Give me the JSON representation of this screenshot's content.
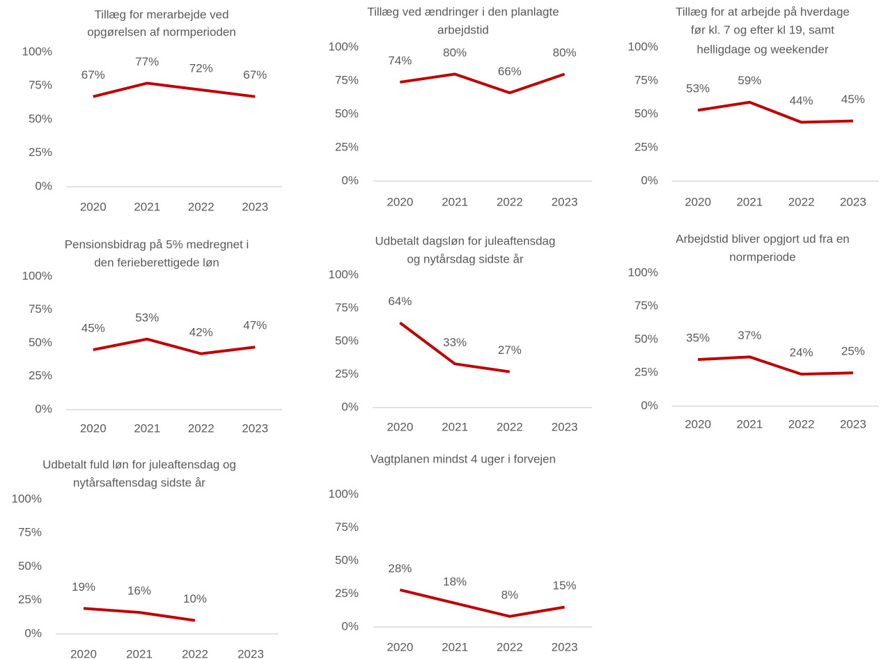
{
  "chart_data": [
    {
      "type": "line",
      "title": [
        "Tillæg for merarbejde ved",
        "opgørelsen af normperioden"
      ],
      "categories": [
        "2020",
        "2021",
        "2022",
        "2023"
      ],
      "values": [
        67,
        77,
        72,
        67
      ],
      "value_labels": [
        "67%",
        "77%",
        "72%",
        "67%"
      ],
      "color": "#c00000",
      "ylim": [
        0,
        100
      ],
      "yticks": [
        {
          "value": 0,
          "label": "0%"
        },
        {
          "value": 25,
          "label": "25%"
        },
        {
          "value": 50,
          "label": "50%"
        },
        {
          "value": 75,
          "label": "75%"
        },
        {
          "value": 100,
          "label": "100%"
        }
      ]
    },
    {
      "type": "line",
      "title": [
        "Tillæg ved ændringer i den planlagte",
        "arbejdstid"
      ],
      "categories": [
        "2020",
        "2021",
        "2022",
        "2023"
      ],
      "values": [
        74,
        80,
        66,
        80
      ],
      "value_labels": [
        "74%",
        "80%",
        "66%",
        "80%"
      ],
      "color": "#c00000",
      "ylim": [
        0,
        100
      ],
      "yticks": [
        {
          "value": 0,
          "label": "0%"
        },
        {
          "value": 25,
          "label": "25%"
        },
        {
          "value": 50,
          "label": "50%"
        },
        {
          "value": 75,
          "label": "75%"
        },
        {
          "value": 100,
          "label": "100%"
        }
      ]
    },
    {
      "type": "line",
      "title": [
        "Tillæg for at arbejde på hverdage",
        "før kl. 7 og efter kl 19, samt",
        "helligdage og weekender"
      ],
      "categories": [
        "2020",
        "2021",
        "2022",
        "2023"
      ],
      "values": [
        53,
        59,
        44,
        45
      ],
      "value_labels": [
        "53%",
        "59%",
        "44%",
        "45%"
      ],
      "color": "#c00000",
      "ylim": [
        0,
        100
      ],
      "yticks": [
        {
          "value": 0,
          "label": "0%"
        },
        {
          "value": 25,
          "label": "25%"
        },
        {
          "value": 50,
          "label": "50%"
        },
        {
          "value": 75,
          "label": "75%"
        },
        {
          "value": 100,
          "label": "100%"
        }
      ]
    },
    {
      "type": "line",
      "title": [
        "Pensionsbidrag på 5% medregnet i",
        "den ferieberettigede løn"
      ],
      "categories": [
        "2020",
        "2021",
        "2022",
        "2023"
      ],
      "values": [
        45,
        53,
        42,
        47
      ],
      "value_labels": [
        "45%",
        "53%",
        "42%",
        "47%"
      ],
      "color": "#c00000",
      "ylim": [
        0,
        100
      ],
      "yticks": [
        {
          "value": 0,
          "label": "0%"
        },
        {
          "value": 25,
          "label": "25%"
        },
        {
          "value": 50,
          "label": "50%"
        },
        {
          "value": 75,
          "label": "75%"
        },
        {
          "value": 100,
          "label": "100%"
        }
      ]
    },
    {
      "type": "line",
      "title": [
        "Udbetalt dagsløn for juleaftensdag",
        "og nytårsdag sidste år"
      ],
      "categories": [
        "2020",
        "2021",
        "2022",
        "2023"
      ],
      "values": [
        64,
        33,
        27,
        null
      ],
      "value_labels": [
        "64%",
        "33%",
        "27%",
        null
      ],
      "color": "#c00000",
      "ylim": [
        0,
        100
      ],
      "yticks": [
        {
          "value": 0,
          "label": "0%"
        },
        {
          "value": 25,
          "label": "25%"
        },
        {
          "value": 50,
          "label": "50%"
        },
        {
          "value": 75,
          "label": "75%"
        },
        {
          "value": 100,
          "label": "100%"
        }
      ]
    },
    {
      "type": "line",
      "title": [
        "Arbejdstid bliver opgjort ud fra en",
        "normperiode"
      ],
      "categories": [
        "2020",
        "2021",
        "2022",
        "2023"
      ],
      "values": [
        35,
        37,
        24,
        25
      ],
      "value_labels": [
        "35%",
        "37%",
        "24%",
        "25%"
      ],
      "color": "#c00000",
      "ylim": [
        0,
        100
      ],
      "yticks": [
        {
          "value": 0,
          "label": "0%"
        },
        {
          "value": 25,
          "label": "25%"
        },
        {
          "value": 50,
          "label": "50%"
        },
        {
          "value": 75,
          "label": "75%"
        },
        {
          "value": 100,
          "label": "100%"
        }
      ]
    },
    {
      "type": "line",
      "title": [
        "Udbetalt fuld løn for juleaftensdag og",
        "nytårsaftensdag sidste år"
      ],
      "categories": [
        "2020",
        "2021",
        "2022",
        "2023"
      ],
      "values": [
        19,
        16,
        10,
        null
      ],
      "value_labels": [
        "19%",
        "16%",
        "10%",
        null
      ],
      "color": "#c00000",
      "ylim": [
        0,
        100
      ],
      "yticks": [
        {
          "value": 0,
          "label": "0%"
        },
        {
          "value": 25,
          "label": "25%"
        },
        {
          "value": 50,
          "label": "50%"
        },
        {
          "value": 75,
          "label": "75%"
        },
        {
          "value": 100,
          "label": "100%"
        }
      ]
    },
    {
      "type": "line",
      "title": [
        "Vagtplanen mindst 4 uger i forvejen"
      ],
      "categories": [
        "2020",
        "2021",
        "2022",
        "2023"
      ],
      "values": [
        28,
        18,
        8,
        15
      ],
      "value_labels": [
        "28%",
        "18%",
        "8%",
        "15%"
      ],
      "color": "#c00000",
      "ylim": [
        0,
        100
      ],
      "yticks": [
        {
          "value": 0,
          "label": "0%"
        },
        {
          "value": 25,
          "label": "25%"
        },
        {
          "value": 50,
          "label": "50%"
        },
        {
          "value": 75,
          "label": "75%"
        },
        {
          "value": 100,
          "label": "100%"
        }
      ]
    }
  ]
}
